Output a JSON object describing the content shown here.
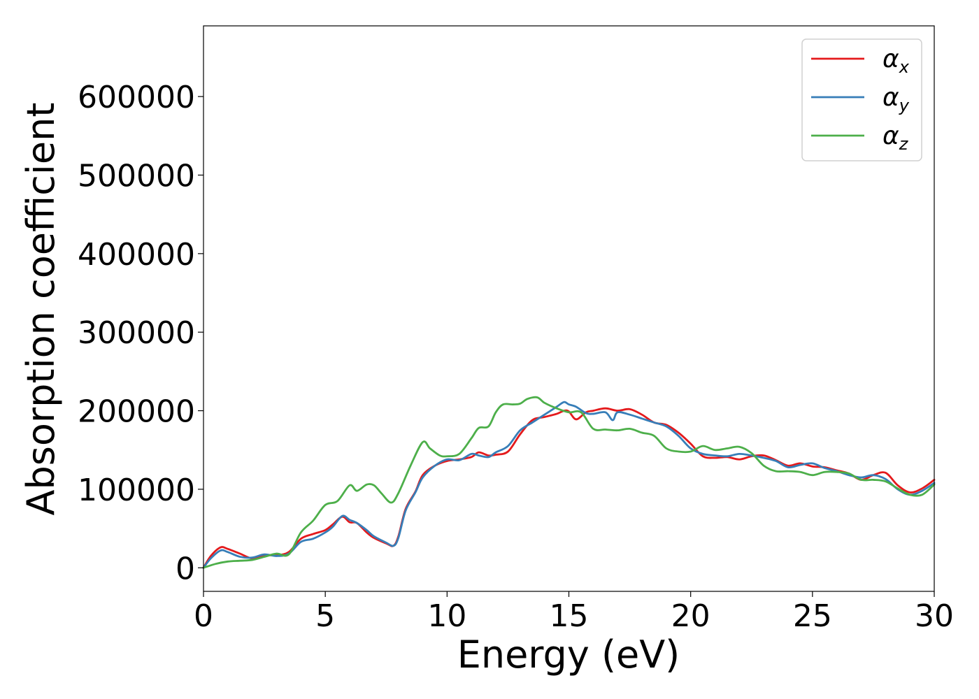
{
  "chart_data": {
    "type": "line",
    "title": "",
    "xlabel": "Energy (eV)",
    "ylabel": "Absorption coefficient",
    "xlim": [
      0,
      30
    ],
    "ylim": [
      -30000,
      690000
    ],
    "xticks": [
      0,
      5,
      10,
      15,
      20,
      25,
      30
    ],
    "yticks": [
      0,
      100000,
      200000,
      300000,
      400000,
      500000,
      600000
    ],
    "xtick_labels": [
      "0",
      "5",
      "10",
      "15",
      "20",
      "25",
      "30"
    ],
    "ytick_labels": [
      "0",
      "100000",
      "200000",
      "300000",
      "400000",
      "500000",
      "600000"
    ],
    "grid": false,
    "legend_position": "top-right",
    "series": [
      {
        "name": "α_x",
        "symbol": "α",
        "subscript": "x",
        "color": "#e41a1c",
        "x": [
          0,
          0.3,
          0.7,
          1.0,
          1.5,
          2.0,
          2.5,
          3.0,
          3.5,
          4.0,
          4.5,
          5.0,
          5.3,
          5.7,
          6.0,
          6.3,
          6.7,
          7.0,
          7.5,
          7.8,
          8.0,
          8.3,
          8.7,
          9.0,
          9.5,
          10.0,
          10.5,
          11.0,
          11.3,
          11.7,
          12.0,
          12.5,
          13.0,
          13.5,
          14.0,
          14.5,
          14.8,
          15.0,
          15.3,
          15.7,
          16.0,
          16.5,
          17.0,
          17.5,
          18.0,
          18.5,
          19.0,
          19.5,
          20.0,
          20.5,
          21.0,
          21.5,
          22.0,
          22.5,
          23.0,
          23.5,
          24.0,
          24.5,
          25.0,
          25.5,
          26.0,
          26.5,
          27.0,
          27.5,
          28.0,
          28.5,
          29.0,
          29.5,
          30.0
        ],
        "y": [
          0,
          15000,
          26000,
          24000,
          18000,
          12000,
          16000,
          16000,
          20000,
          37000,
          43000,
          48000,
          55000,
          65000,
          58000,
          57000,
          45000,
          38000,
          31000,
          28000,
          40000,
          75000,
          97000,
          118000,
          130000,
          136000,
          138000,
          141000,
          147000,
          143000,
          144000,
          148000,
          170000,
          188000,
          192000,
          196000,
          200000,
          199000,
          189000,
          198000,
          200000,
          203000,
          200000,
          202000,
          195000,
          185000,
          182000,
          172000,
          158000,
          142000,
          140000,
          141000,
          138000,
          142000,
          143000,
          137000,
          130000,
          133000,
          129000,
          128000,
          124000,
          120000,
          112000,
          118000,
          121000,
          105000,
          96000,
          101000,
          112000
        ]
      },
      {
        "name": "α_y",
        "symbol": "α",
        "subscript": "y",
        "color": "#377eb8",
        "x": [
          0,
          0.3,
          0.7,
          1.0,
          1.5,
          2.0,
          2.5,
          3.0,
          3.5,
          4.0,
          4.5,
          5.0,
          5.3,
          5.7,
          6.0,
          6.3,
          6.7,
          7.0,
          7.5,
          7.8,
          8.0,
          8.3,
          8.7,
          9.0,
          9.5,
          10.0,
          10.5,
          11.0,
          11.3,
          11.7,
          12.0,
          12.5,
          13.0,
          13.5,
          14.0,
          14.5,
          14.8,
          15.0,
          15.3,
          15.7,
          16.0,
          16.5,
          16.8,
          17.0,
          17.5,
          18.0,
          18.5,
          19.0,
          19.5,
          20.0,
          20.5,
          21.0,
          21.5,
          22.0,
          22.5,
          23.0,
          23.5,
          24.0,
          24.5,
          25.0,
          25.5,
          26.0,
          26.5,
          27.0,
          27.5,
          28.0,
          28.5,
          29.0,
          29.5,
          30.0
        ],
        "y": [
          0,
          12000,
          22000,
          20000,
          14000,
          13000,
          17000,
          15000,
          18000,
          33000,
          37000,
          45000,
          52000,
          66000,
          61000,
          57000,
          48000,
          40000,
          32000,
          28000,
          38000,
          73000,
          96000,
          115000,
          130000,
          138000,
          137000,
          145000,
          143000,
          141000,
          147000,
          155000,
          175000,
          185000,
          195000,
          205000,
          211000,
          208000,
          205000,
          197000,
          196000,
          198000,
          188000,
          198000,
          195000,
          190000,
          185000,
          180000,
          168000,
          152000,
          145000,
          143000,
          142000,
          145000,
          143000,
          140000,
          136000,
          128000,
          131000,
          133000,
          127000,
          123000,
          118000,
          115000,
          118000,
          113000,
          100000,
          93000,
          98000,
          108000
        ]
      },
      {
        "name": "α_z",
        "symbol": "α",
        "subscript": "z",
        "color": "#4daf4a",
        "x": [
          0,
          0.5,
          1.0,
          1.5,
          2.0,
          2.5,
          3.0,
          3.5,
          4.0,
          4.5,
          5.0,
          5.5,
          6.0,
          6.3,
          6.7,
          7.0,
          7.3,
          7.7,
          8.0,
          8.5,
          9.0,
          9.3,
          9.7,
          10.0,
          10.5,
          11.0,
          11.3,
          11.7,
          12.0,
          12.3,
          12.7,
          13.0,
          13.3,
          13.7,
          14.0,
          14.5,
          15.0,
          15.5,
          16.0,
          16.5,
          17.0,
          17.5,
          18.0,
          18.5,
          19.0,
          19.5,
          20.0,
          20.5,
          21.0,
          21.5,
          22.0,
          22.5,
          23.0,
          23.5,
          24.0,
          24.5,
          25.0,
          25.5,
          26.0,
          26.5,
          27.0,
          27.5,
          28.0,
          28.5,
          29.0,
          29.5,
          30.0
        ],
        "y": [
          0,
          5000,
          8000,
          9000,
          10000,
          14000,
          18000,
          17000,
          45000,
          60000,
          80000,
          85000,
          105000,
          98000,
          106000,
          105000,
          95000,
          83000,
          95000,
          130000,
          160000,
          152000,
          143000,
          142000,
          145000,
          165000,
          178000,
          180000,
          198000,
          208000,
          208000,
          209000,
          215000,
          217000,
          210000,
          203000,
          198000,
          198000,
          177000,
          176000,
          175000,
          177000,
          172000,
          168000,
          152000,
          148000,
          148000,
          155000,
          150000,
          152000,
          154000,
          146000,
          130000,
          123000,
          123000,
          122000,
          118000,
          122000,
          122000,
          120000,
          112000,
          112000,
          110000,
          101000,
          93000,
          93000,
          106000
        ]
      }
    ]
  }
}
